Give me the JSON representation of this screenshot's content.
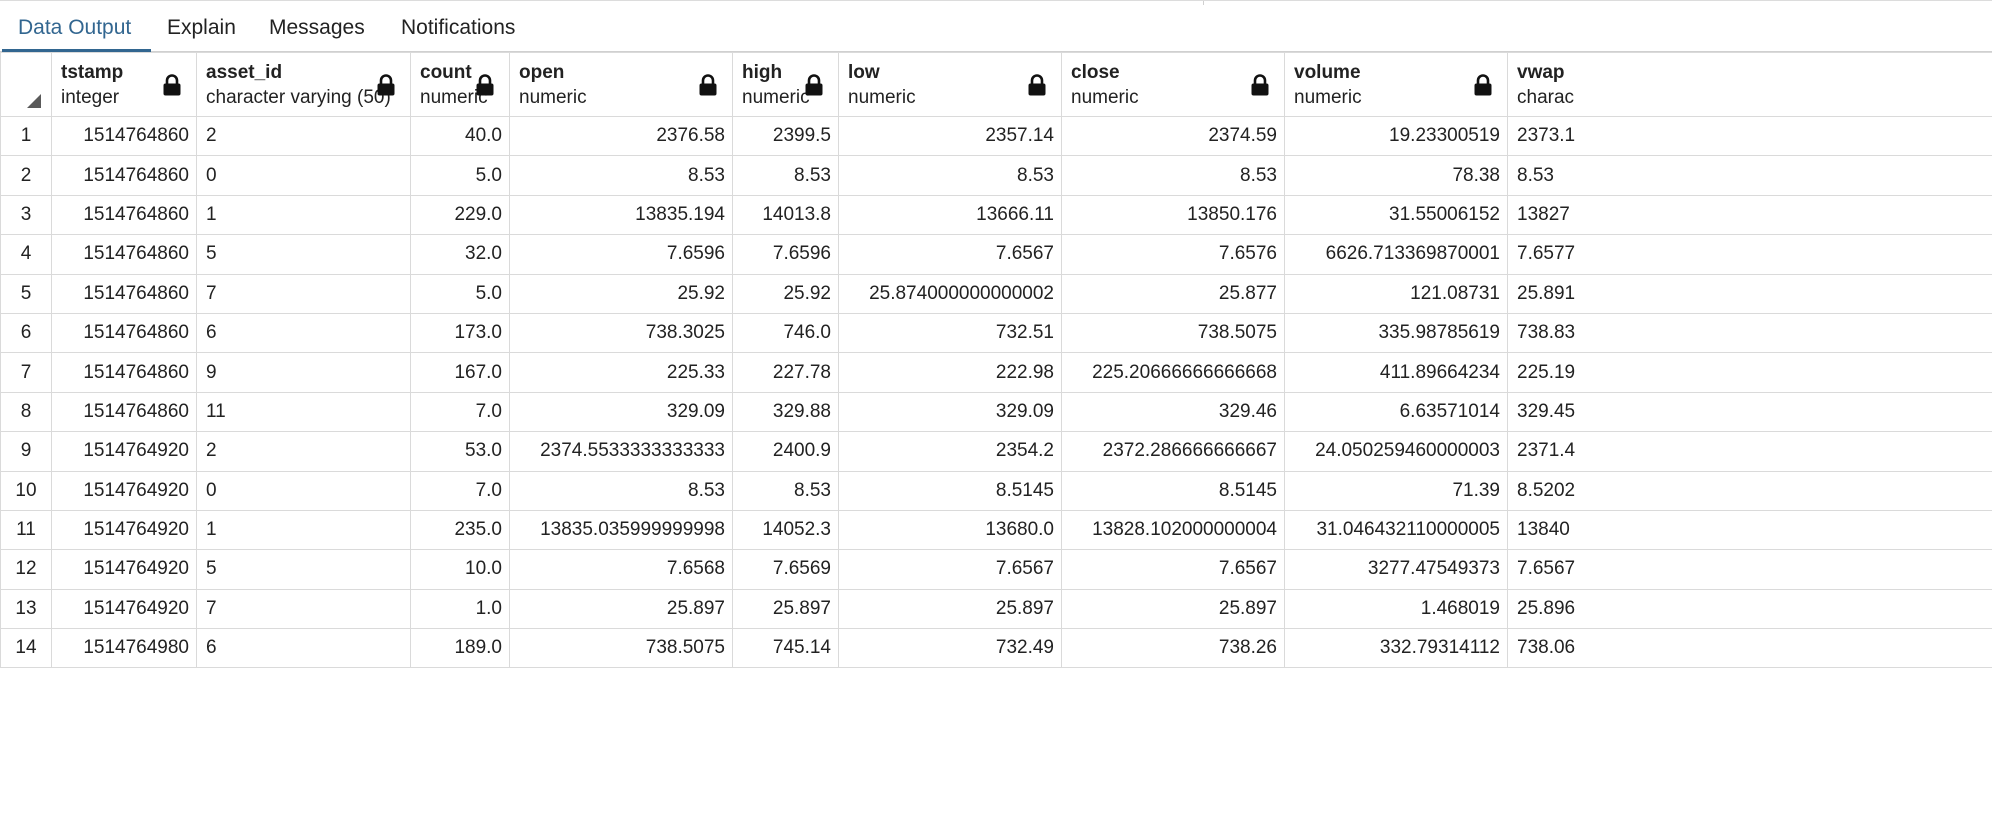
{
  "tabs": [
    {
      "label": "Data Output",
      "active": true
    },
    {
      "label": "Explain",
      "active": false
    },
    {
      "label": "Messages",
      "active": false
    },
    {
      "label": "Notifications",
      "active": false
    }
  ],
  "columns": [
    {
      "name": "tstamp",
      "type": "integer"
    },
    {
      "name": "asset_id",
      "type": "character varying (50)"
    },
    {
      "name": "count",
      "type": "numeric"
    },
    {
      "name": "open",
      "type": "numeric"
    },
    {
      "name": "high",
      "type": "numeric"
    },
    {
      "name": "low",
      "type": "numeric"
    },
    {
      "name": "close",
      "type": "numeric"
    },
    {
      "name": "volume",
      "type": "numeric"
    },
    {
      "name": "vwap",
      "type": "charac"
    }
  ],
  "rows": [
    {
      "n": "1",
      "cells": [
        "1514764860",
        "2",
        "40.0",
        "2376.58",
        "2399.5",
        "2357.14",
        "2374.59",
        "19.23300519",
        "2373.1"
      ]
    },
    {
      "n": "2",
      "cells": [
        "1514764860",
        "0",
        "5.0",
        "8.53",
        "8.53",
        "8.53",
        "8.53",
        "78.38",
        "8.53"
      ]
    },
    {
      "n": "3",
      "cells": [
        "1514764860",
        "1",
        "229.0",
        "13835.194",
        "14013.8",
        "13666.11",
        "13850.176",
        "31.55006152",
        "13827"
      ]
    },
    {
      "n": "4",
      "cells": [
        "1514764860",
        "5",
        "32.0",
        "7.6596",
        "7.6596",
        "7.6567",
        "7.6576",
        "6626.713369870001",
        "7.6577"
      ]
    },
    {
      "n": "5",
      "cells": [
        "1514764860",
        "7",
        "5.0",
        "25.92",
        "25.92",
        "25.874000000000002",
        "25.877",
        "121.08731",
        "25.891"
      ]
    },
    {
      "n": "6",
      "cells": [
        "1514764860",
        "6",
        "173.0",
        "738.3025",
        "746.0",
        "732.51",
        "738.5075",
        "335.98785619",
        "738.83"
      ]
    },
    {
      "n": "7",
      "cells": [
        "1514764860",
        "9",
        "167.0",
        "225.33",
        "227.78",
        "222.98",
        "225.20666666666668",
        "411.89664234",
        "225.19"
      ]
    },
    {
      "n": "8",
      "cells": [
        "1514764860",
        "11",
        "7.0",
        "329.09",
        "329.88",
        "329.09",
        "329.46",
        "6.63571014",
        "329.45"
      ]
    },
    {
      "n": "9",
      "cells": [
        "1514764920",
        "2",
        "53.0",
        "2374.5533333333333",
        "2400.9",
        "2354.2",
        "2372.286666666667",
        "24.050259460000003",
        "2371.4"
      ]
    },
    {
      "n": "10",
      "cells": [
        "1514764920",
        "0",
        "7.0",
        "8.53",
        "8.53",
        "8.5145",
        "8.5145",
        "71.39",
        "8.5202"
      ]
    },
    {
      "n": "11",
      "cells": [
        "1514764920",
        "1",
        "235.0",
        "13835.035999999998",
        "14052.3",
        "13680.0",
        "13828.102000000004",
        "31.046432110000005",
        "13840"
      ]
    },
    {
      "n": "12",
      "cells": [
        "1514764920",
        "5",
        "10.0",
        "7.6568",
        "7.6569",
        "7.6567",
        "7.6567",
        "3277.47549373",
        "7.6567"
      ]
    },
    {
      "n": "13",
      "cells": [
        "1514764920",
        "7",
        "1.0",
        "25.897",
        "25.897",
        "25.897",
        "25.897",
        "1.468019",
        "25.896"
      ]
    },
    {
      "n": "14",
      "cells": [
        "1514764980",
        "6",
        "189.0",
        "738.5075",
        "745.14",
        "732.49",
        "738.26",
        "332.79314112",
        "738.06"
      ]
    }
  ]
}
